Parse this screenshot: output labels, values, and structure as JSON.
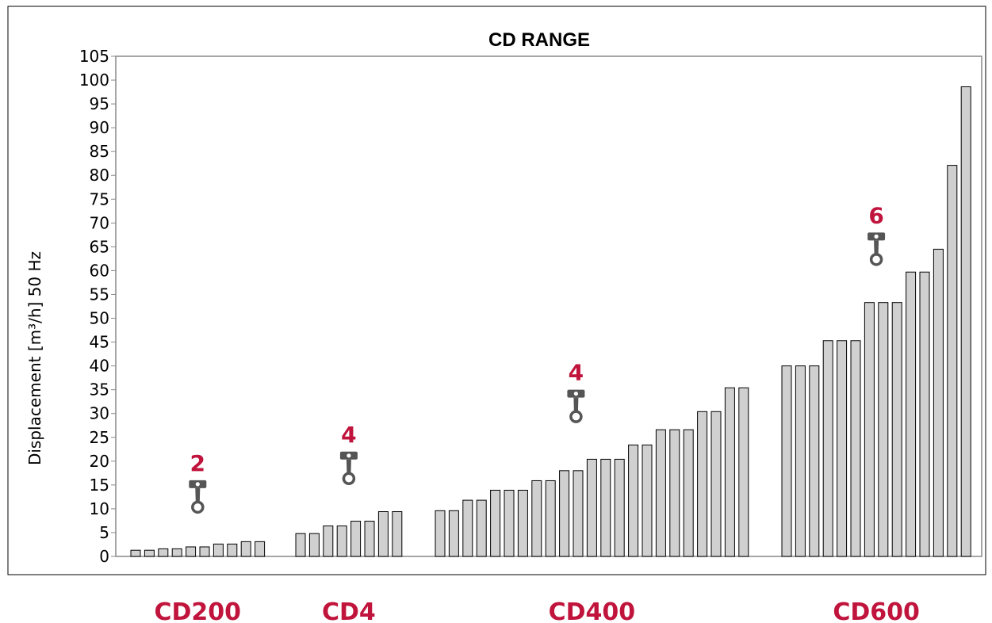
{
  "colors": {
    "accent": "#c0143c",
    "bar_fill": "#d0d0d0",
    "bar_stroke": "#000000",
    "piston": "#555555"
  },
  "chart_data": {
    "type": "bar",
    "title": "CD  RANGE",
    "ylabel": "Displacement [m³/h] 50 Hz",
    "xlabel": "",
    "ylim": [
      0,
      105
    ],
    "yticks": [
      0,
      5,
      10,
      15,
      20,
      25,
      30,
      35,
      40,
      45,
      50,
      55,
      60,
      65,
      70,
      75,
      80,
      85,
      90,
      95,
      100,
      105
    ],
    "grid": false,
    "legend": "none",
    "groups": [
      {
        "name": "CD200",
        "cylinders": "2",
        "values": [
          1.3,
          1.3,
          1.6,
          1.6,
          2.0,
          2.0,
          2.6,
          2.6,
          3.1,
          3.1
        ]
      },
      {
        "name": "CD4",
        "cylinders": "4",
        "values": [
          4.8,
          4.8,
          6.4,
          6.4,
          7.4,
          7.4,
          9.4,
          9.4
        ]
      },
      {
        "name": "CD400",
        "cylinders": "4",
        "values": [
          9.6,
          9.6,
          11.8,
          11.8,
          13.9,
          13.9,
          13.9,
          15.9,
          15.9,
          18.0,
          18.0,
          20.4,
          20.4,
          20.4,
          23.4,
          23.4,
          26.6,
          26.6,
          26.6,
          30.4,
          30.4,
          35.4,
          35.4
        ]
      },
      {
        "name": "CD600",
        "cylinders": "6",
        "values": [
          40.0,
          40.0,
          40.0,
          45.3,
          45.3,
          45.3,
          53.3,
          53.3,
          53.3,
          59.7,
          59.7,
          64.5,
          82.1,
          98.6
        ]
      }
    ]
  }
}
